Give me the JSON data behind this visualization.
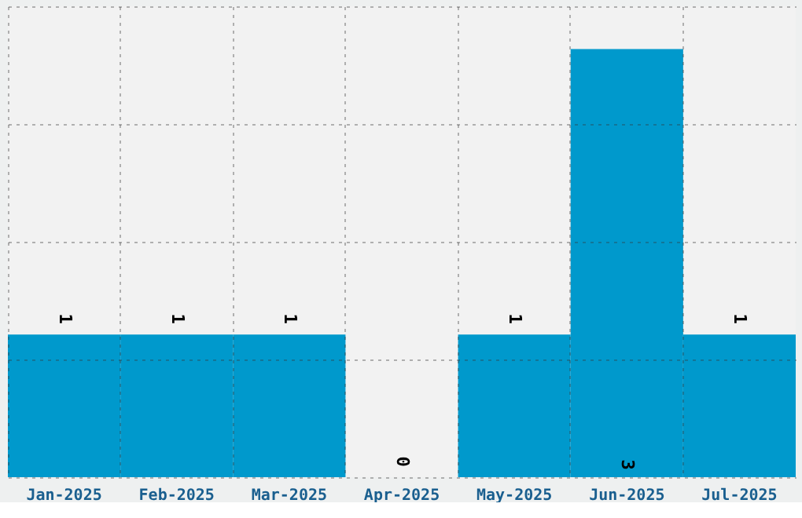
{
  "chart_data": {
    "type": "bar",
    "categories": [
      "Jan-2025",
      "Feb-2025",
      "Mar-2025",
      "Apr-2025",
      "May-2025",
      "Jun-2025",
      "Jul-2025"
    ],
    "values": [
      1,
      1,
      1,
      0,
      1,
      3,
      1
    ],
    "color": "#0099cc",
    "ylim": [
      0,
      3.3
    ],
    "yticks": [
      {
        "value": 0,
        "label": null
      },
      {
        "value": 0.825,
        "label": null
      },
      {
        "value": 1.65,
        "label": null
      },
      {
        "value": 2.475,
        "label": null
      },
      {
        "value": 3.3,
        "label": null
      }
    ],
    "grid": true,
    "data_labels": true,
    "tick_labels": "x"
  }
}
